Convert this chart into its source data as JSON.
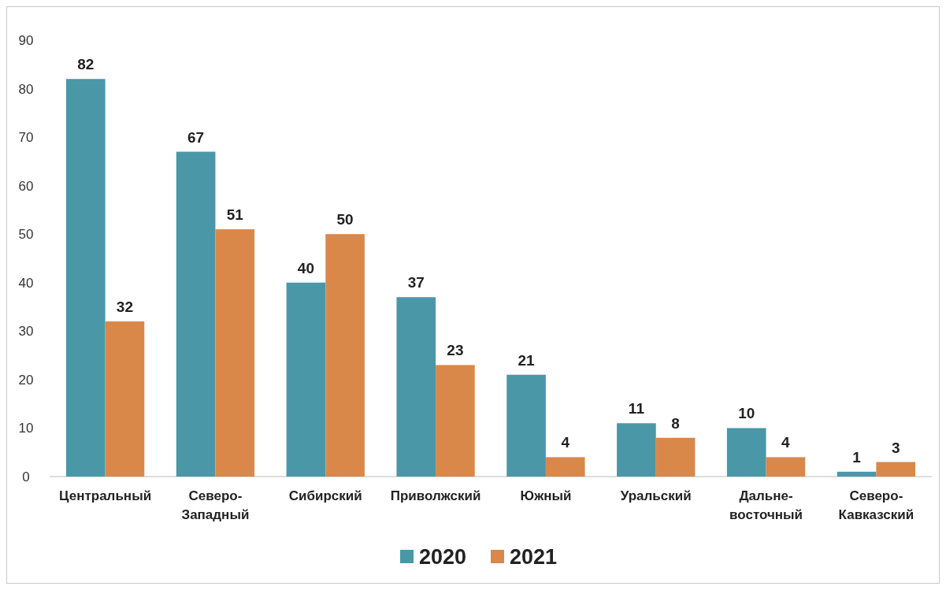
{
  "chart_data": {
    "type": "bar",
    "categories": [
      "Центральный",
      "Северо-Западный",
      "Сибирский",
      "Приволжский",
      "Южный",
      "Уральский",
      "Дальне-восточный",
      "Северо-Кавказский"
    ],
    "series": [
      {
        "name": "2020",
        "color": "#4a97a8",
        "values": [
          82,
          67,
          40,
          37,
          21,
          11,
          10,
          1
        ]
      },
      {
        "name": "2021",
        "color": "#d9884a",
        "values": [
          32,
          51,
          50,
          23,
          4,
          8,
          4,
          3
        ]
      }
    ],
    "ylim": [
      0,
      90
    ],
    "yticks": [
      0,
      10,
      20,
      30,
      40,
      50,
      60,
      70,
      80,
      90
    ],
    "grid": false,
    "legend": "bottom",
    "data_labels": true
  }
}
